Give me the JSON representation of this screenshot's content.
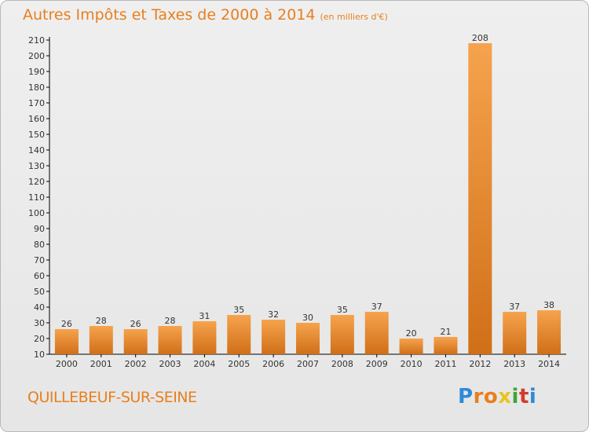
{
  "header": {
    "title": "Autres Impôts et Taxes de 2000 à 2014",
    "unit": "(en milliers d'€)"
  },
  "footer": {
    "commune": "QUILLEBEUF-SUR-SEINE",
    "logo": [
      "P",
      "r",
      "o",
      "x",
      "i",
      "t",
      "i"
    ],
    "logo_colors": [
      "#2e8ad8",
      "#e87f1e",
      "#e87f1e",
      "#e8c51e",
      "#3fa535",
      "#d43b2a",
      "#2e8ad8"
    ]
  },
  "colors": {
    "bar_light": "#f6a34d",
    "bar_dark": "#d06f18",
    "accent": "#e87f1e"
  },
  "chart_data": {
    "type": "bar",
    "title": "Autres Impôts et Taxes de 2000 à 2014",
    "subtitle": "(en milliers d'€)",
    "xlabel": "",
    "ylabel": "",
    "categories": [
      "2000",
      "2001",
      "2002",
      "2003",
      "2004",
      "2005",
      "2006",
      "2007",
      "2008",
      "2009",
      "2010",
      "2011",
      "2012",
      "2013",
      "2014"
    ],
    "values": [
      26,
      28,
      26,
      28,
      31,
      35,
      32,
      30,
      35,
      37,
      20,
      21,
      208,
      37,
      38
    ],
    "ylim": [
      10,
      210
    ],
    "yticks": [
      10,
      20,
      30,
      40,
      50,
      60,
      70,
      80,
      90,
      100,
      110,
      120,
      130,
      140,
      150,
      160,
      170,
      180,
      190,
      200,
      210
    ],
    "grid": false,
    "legend": "none"
  }
}
